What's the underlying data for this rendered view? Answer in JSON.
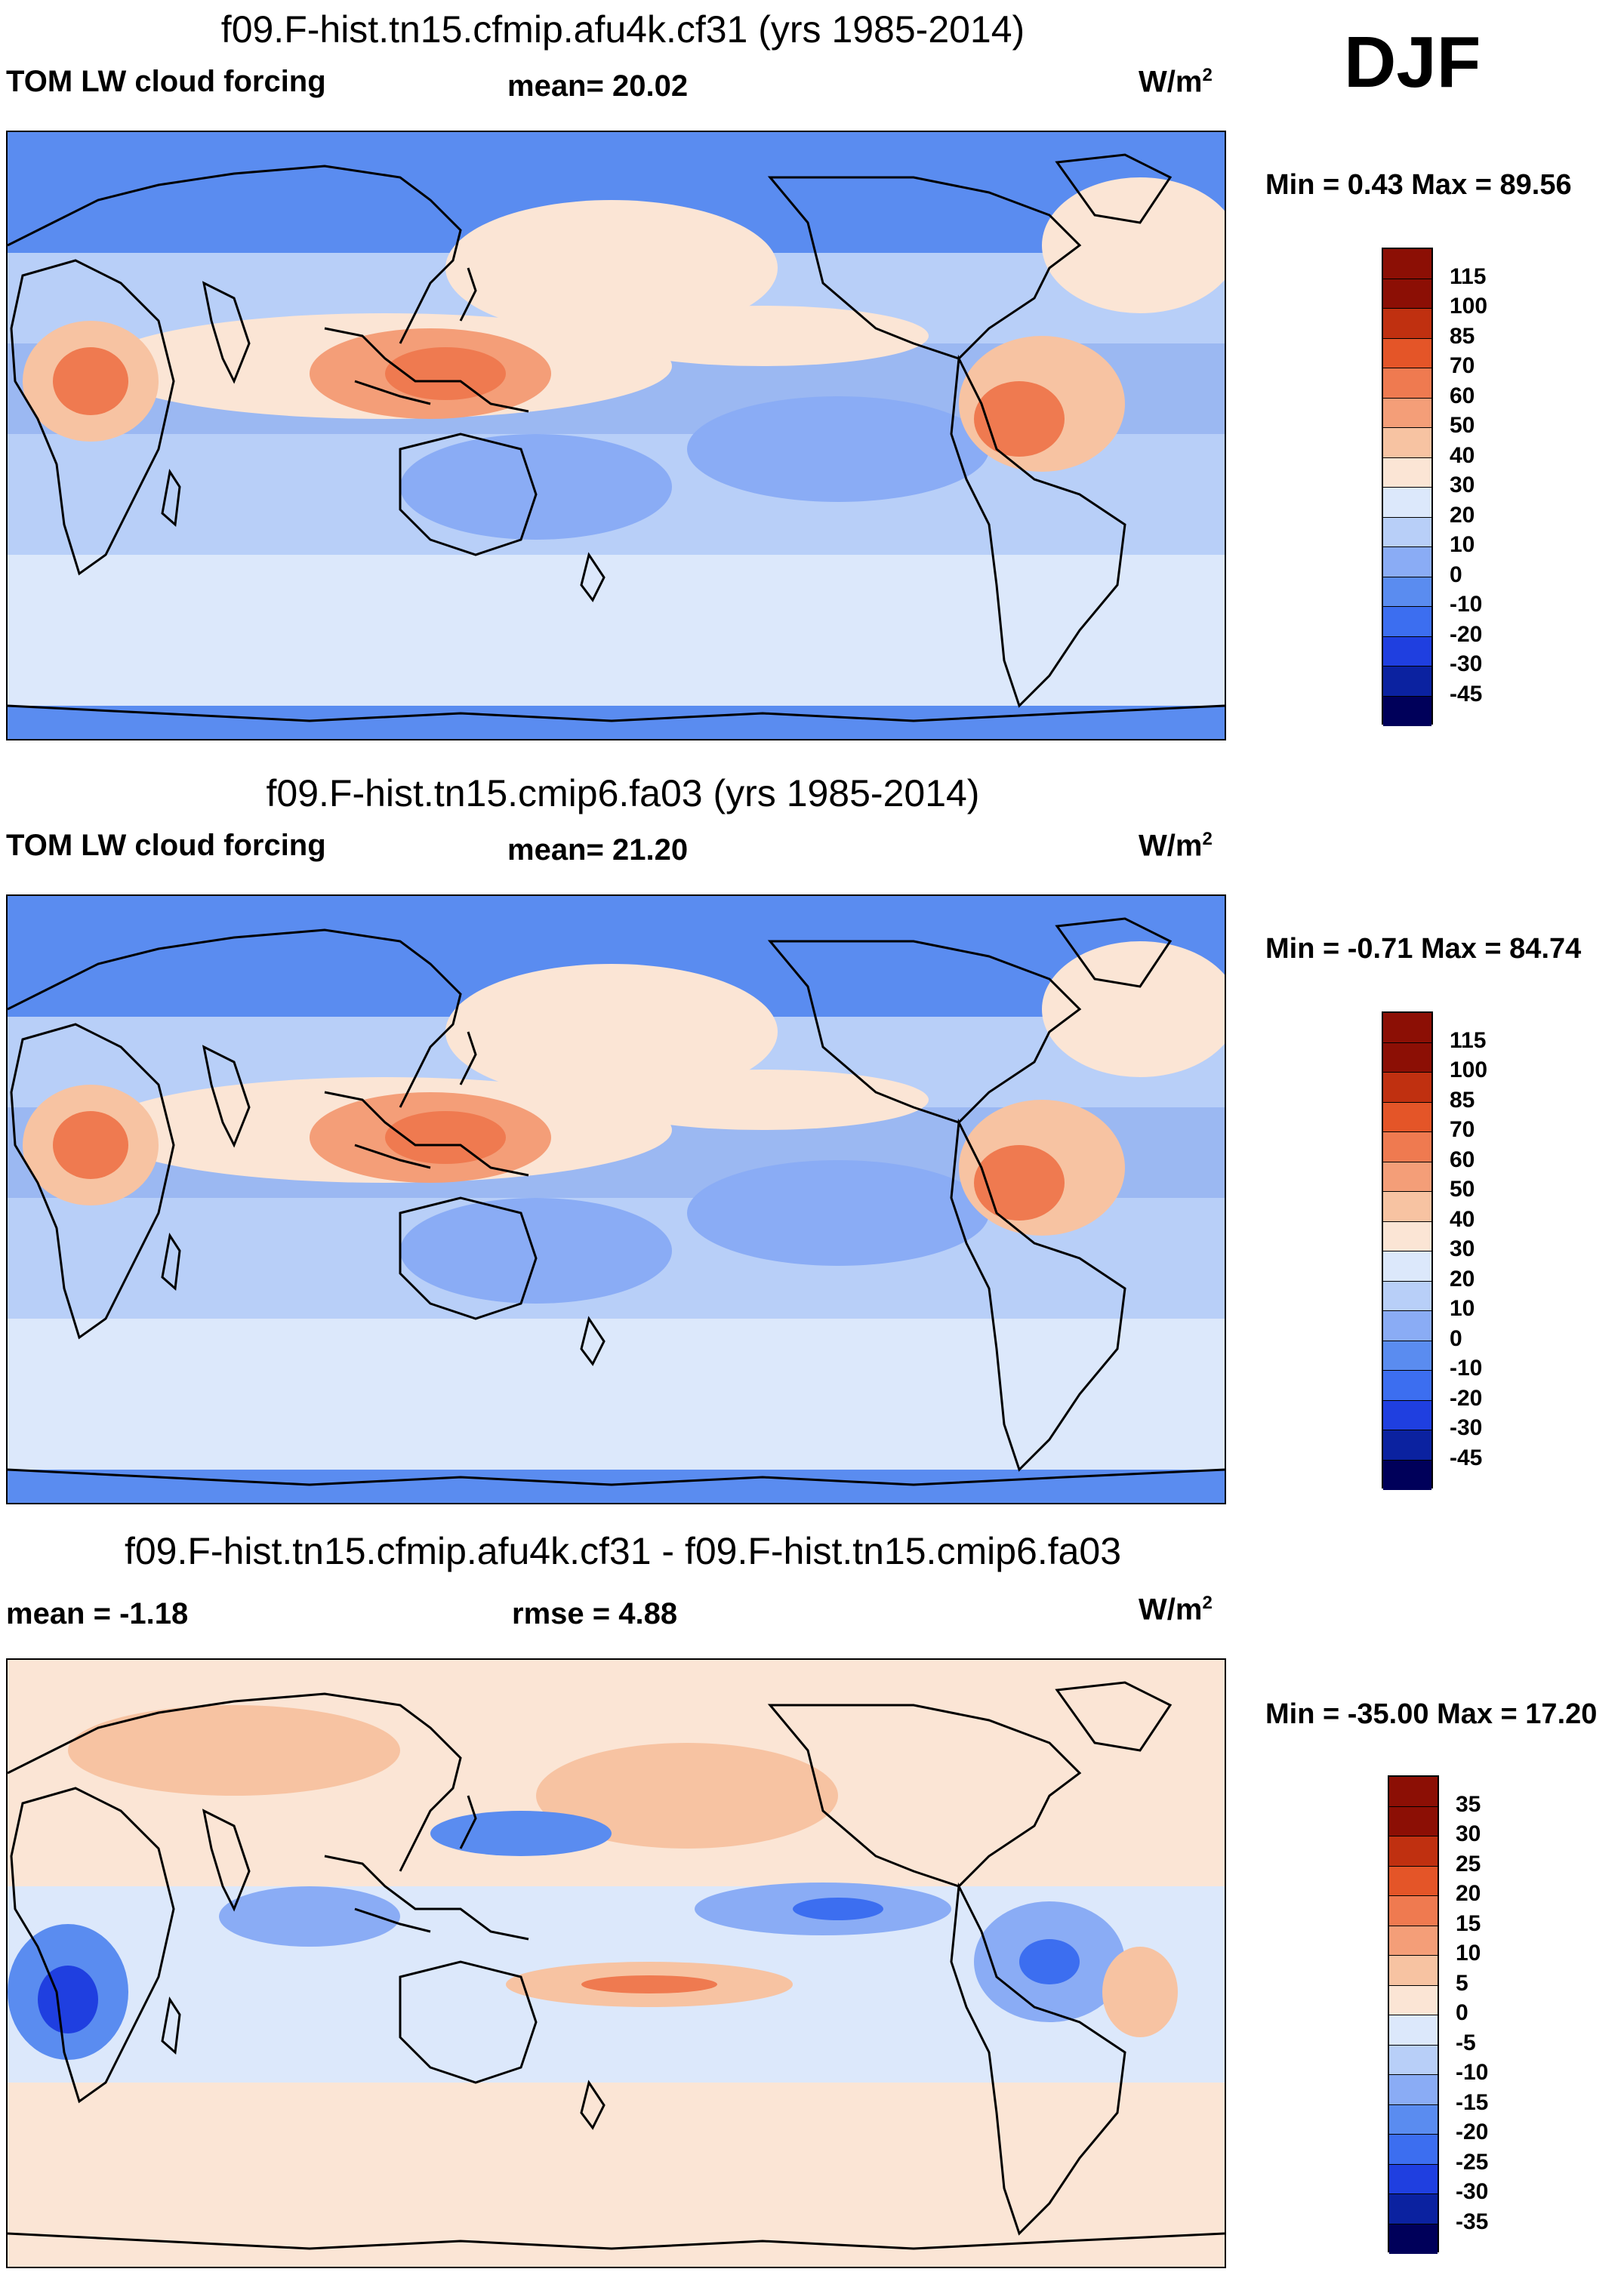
{
  "season": "DJF",
  "colors": {
    "cloud_forcing": [
      "#00005a",
      "#0b22a0",
      "#1f3fe0",
      "#3c6ef0",
      "#5a8cf0",
      "#8aacf5",
      "#b8cff8",
      "#dce8fb",
      "#fbe5d5",
      "#f7c3a2",
      "#f49e78",
      "#ef7a50",
      "#e45528",
      "#c03010",
      "#8c0f05"
    ],
    "difference": [
      "#00005a",
      "#0b22a0",
      "#1f3fe0",
      "#3c6ef0",
      "#5a8cf0",
      "#8aacf5",
      "#b8cff8",
      "#dce8fb",
      "#fbe5d5",
      "#f7c3a2",
      "#f49e78",
      "#ef7a50",
      "#e45528",
      "#c03010",
      "#8c0f05"
    ],
    "ocean_base": "#9bb8f2",
    "coast": "#000000"
  },
  "chart_data": [
    {
      "type": "heatmap",
      "title": "f09.F-hist.tn15.cfmip.afu4k.cf31 (yrs 1985-2014)",
      "variable": "TOM LW cloud forcing",
      "mean_label": "mean=",
      "mean_value": "20.02",
      "units": "W/m",
      "units_sup": "2",
      "min_label": "Min =",
      "min_value": "0.43",
      "max_label": "Max =",
      "max_value": "89.56",
      "colorbar_levels": [
        "115",
        "100",
        "85",
        "70",
        "60",
        "50",
        "40",
        "30",
        "20",
        "10",
        "0",
        "-10",
        "-20",
        "-30",
        "-45"
      ]
    },
    {
      "type": "heatmap",
      "title": "f09.F-hist.tn15.cmip6.fa03 (yrs 1985-2014)",
      "variable": "TOM LW cloud forcing",
      "mean_label": "mean=",
      "mean_value": "21.20",
      "units": "W/m",
      "units_sup": "2",
      "min_label": "Min =",
      "min_value": "-0.71",
      "max_label": "Max =",
      "max_value": "84.74",
      "colorbar_levels": [
        "115",
        "100",
        "85",
        "70",
        "60",
        "50",
        "40",
        "30",
        "20",
        "10",
        "0",
        "-10",
        "-20",
        "-30",
        "-45"
      ]
    },
    {
      "type": "heatmap",
      "title": "f09.F-hist.tn15.cfmip.afu4k.cf31 - f09.F-hist.tn15.cmip6.fa03",
      "mean_label": "mean =",
      "mean_value": "-1.18",
      "rmse_label": "rmse =",
      "rmse_value": "4.88",
      "units": "W/m",
      "units_sup": "2",
      "min_label": "Min =",
      "min_value": "-35.00",
      "max_label": "Max =",
      "max_value": "17.20",
      "colorbar_levels": [
        "35",
        "30",
        "25",
        "20",
        "15",
        "10",
        "5",
        "0",
        "-5",
        "-10",
        "-15",
        "-20",
        "-25",
        "-30",
        "-35"
      ]
    }
  ]
}
